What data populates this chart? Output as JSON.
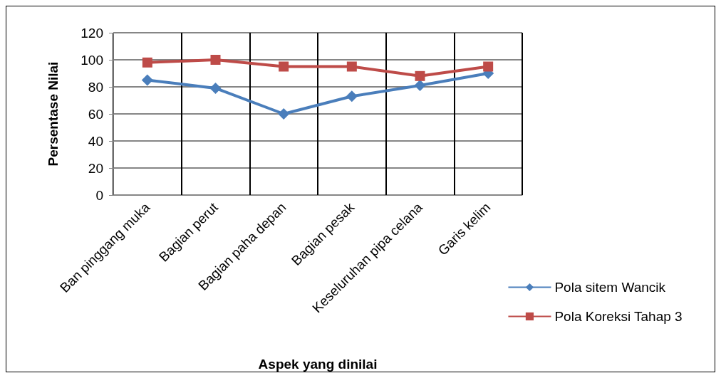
{
  "chart_data": {
    "type": "line",
    "xlabel": "Aspek yang dinilai",
    "ylabel": "Persentase Nilai",
    "categories": [
      "Ban pinggang muka",
      "Bagian perut",
      "Bagian paha depan",
      "Bagian pesak",
      "Keseluruhan pipa celana",
      "Garis kelim"
    ],
    "series": [
      {
        "name": "Pola sitem Wancik",
        "color": "#4a7ebb",
        "marker": "diamond",
        "values": [
          85,
          79,
          60,
          73,
          81,
          90
        ]
      },
      {
        "name": "Pola Koreksi Tahap 3",
        "color": "#be4b48",
        "marker": "square",
        "values": [
          98,
          100,
          95,
          95,
          88,
          95
        ]
      }
    ],
    "ylim": [
      0,
      120
    ],
    "yticks": [
      0,
      20,
      40,
      60,
      80,
      100,
      120
    ],
    "grid": true,
    "legend": "right"
  }
}
